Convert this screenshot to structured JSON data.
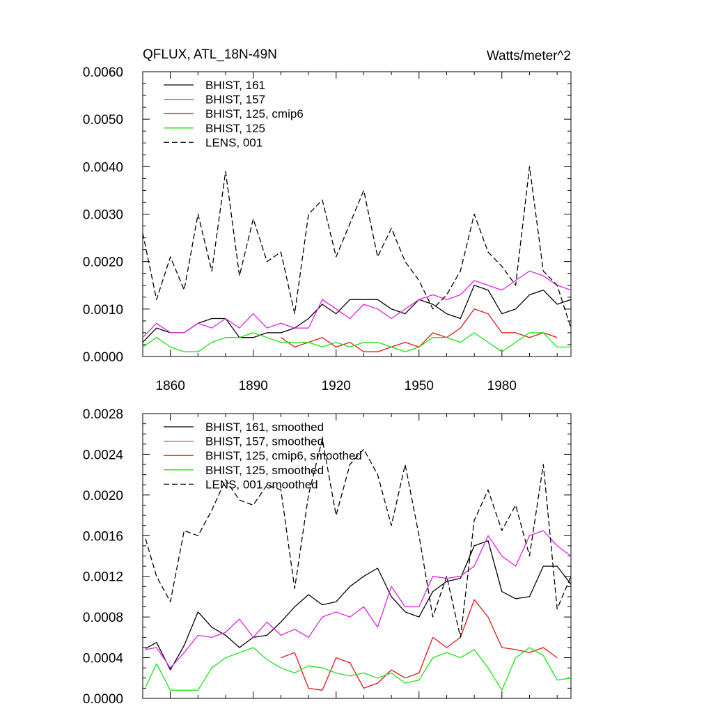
{
  "figure": {
    "title_left": "QFLUX, ATL_18N-49N",
    "title_right": "Watts/meter^2"
  },
  "colors": {
    "BHIST_161": "#000000",
    "BHIST_157": "#e61ee6",
    "BHIST_125_cmip6": "#e61414",
    "BHIST_125": "#14e614",
    "LENS_001": "#000000"
  },
  "chart_data": [
    {
      "type": "line",
      "title": "",
      "xlabel": "",
      "ylabel": "",
      "xlim": [
        1850,
        2005
      ],
      "ylim": [
        0.0,
        0.006
      ],
      "x_ticks": [
        "1860",
        "1890",
        "1920",
        "1950",
        "1980"
      ],
      "y_ticks": [
        "0.0000",
        "0.0010",
        "0.0020",
        "0.0030",
        "0.0040",
        "0.0050",
        "0.0060"
      ],
      "legend_position": "top-left",
      "x": [
        1850,
        1855,
        1860,
        1865,
        1870,
        1875,
        1880,
        1885,
        1890,
        1895,
        1900,
        1905,
        1910,
        1915,
        1920,
        1925,
        1930,
        1935,
        1940,
        1945,
        1950,
        1955,
        1960,
        1965,
        1970,
        1975,
        1980,
        1985,
        1990,
        1995,
        2000,
        2005
      ],
      "series": [
        {
          "name": "BHIST, 161",
          "key": "BHIST_161",
          "dash": "solid",
          "values": [
            0.0003,
            0.0006,
            0.0005,
            0.0005,
            0.0007,
            0.0008,
            0.0008,
            0.0004,
            0.0004,
            0.0005,
            0.0005,
            0.0006,
            0.0008,
            0.0011,
            0.0009,
            0.0012,
            0.0012,
            0.0012,
            0.001,
            0.0009,
            0.0012,
            0.0011,
            0.0009,
            0.0008,
            0.0015,
            0.0014,
            0.0009,
            0.001,
            0.0013,
            0.0014,
            0.0011,
            0.0012
          ]
        },
        {
          "name": "BHIST, 157",
          "key": "BHIST_157",
          "dash": "solid",
          "values": [
            0.0004,
            0.0007,
            0.0005,
            0.0005,
            0.0007,
            0.0006,
            0.0008,
            0.0006,
            0.0009,
            0.0006,
            0.0007,
            0.0006,
            0.0006,
            0.0012,
            0.001,
            0.0008,
            0.0011,
            0.001,
            0.0008,
            0.001,
            0.0012,
            0.0013,
            0.0012,
            0.0013,
            0.0016,
            0.0015,
            0.0014,
            0.0016,
            0.0018,
            0.0017,
            0.0015,
            0.0014
          ]
        },
        {
          "name": "BHIST, 125, cmip6",
          "key": "BHIST_125_cmip6",
          "dash": "solid",
          "values": [
            null,
            null,
            null,
            null,
            null,
            null,
            null,
            null,
            null,
            null,
            0.0004,
            0.0002,
            0.0003,
            0.0004,
            0.0002,
            0.0003,
            0.0001,
            0.0001,
            0.0002,
            0.0003,
            0.0002,
            0.0005,
            0.0004,
            0.0006,
            0.001,
            0.0009,
            0.0005,
            0.0005,
            0.0004,
            0.0005,
            0.0004,
            null
          ]
        },
        {
          "name": "BHIST, 125",
          "key": "BHIST_125",
          "dash": "solid",
          "values": [
            0.0002,
            0.0004,
            0.0002,
            0.0001,
            0.0001,
            0.0003,
            0.0004,
            0.0004,
            0.0005,
            0.0004,
            0.0003,
            0.0003,
            0.0003,
            0.0002,
            0.0003,
            0.0002,
            0.0003,
            0.0003,
            0.0002,
            0.0001,
            0.0002,
            0.0004,
            0.0004,
            0.0003,
            0.0005,
            0.0003,
            0.0001,
            0.0003,
            0.0005,
            0.0005,
            0.0002,
            0.0002
          ]
        },
        {
          "name": "LENS, 001",
          "key": "LENS_001",
          "dash": "dashed",
          "values": [
            0.0026,
            0.0012,
            0.0021,
            0.0014,
            0.003,
            0.0018,
            0.0039,
            0.0017,
            0.0029,
            0.002,
            0.0022,
            0.0009,
            0.003,
            0.0033,
            0.0021,
            0.0028,
            0.0035,
            0.0021,
            0.0027,
            0.002,
            0.0016,
            0.001,
            0.0013,
            0.0018,
            0.003,
            0.0022,
            0.0019,
            0.0015,
            0.004,
            0.0018,
            0.0015,
            0.0006
          ]
        }
      ]
    },
    {
      "type": "line",
      "title": "",
      "xlabel": "",
      "ylabel": "",
      "xlim": [
        1850,
        2005
      ],
      "ylim": [
        0.0,
        0.0028
      ],
      "x_ticks": [],
      "y_ticks": [
        "0.0000",
        "0.0004",
        "0.0008",
        "0.0012",
        "0.0016",
        "0.0020",
        "0.0024",
        "0.0028"
      ],
      "legend_position": "top-left",
      "x": [
        1851,
        1855,
        1860,
        1865,
        1870,
        1875,
        1880,
        1885,
        1890,
        1895,
        1900,
        1905,
        1910,
        1915,
        1920,
        1925,
        1930,
        1935,
        1940,
        1945,
        1950,
        1955,
        1960,
        1965,
        1970,
        1975,
        1980,
        1985,
        1990,
        1995,
        2000,
        2005
      ],
      "series": [
        {
          "name": "BHIST, 161, smoothed",
          "key": "BHIST_161",
          "dash": "solid",
          "values": [
            0.00049,
            0.00055,
            0.00028,
            0.00052,
            0.00085,
            0.0007,
            0.00062,
            0.0005,
            0.0006,
            0.00062,
            0.00075,
            0.0009,
            0.00102,
            0.00092,
            0.00095,
            0.0011,
            0.0012,
            0.00128,
            0.001,
            0.00085,
            0.0008,
            0.00105,
            0.00115,
            0.00118,
            0.0015,
            0.00155,
            0.00105,
            0.00098,
            0.001,
            0.0013,
            0.0013,
            0.00112
          ]
        },
        {
          "name": "BHIST, 157, smoothed",
          "key": "BHIST_157",
          "dash": "solid",
          "values": [
            0.00048,
            0.0005,
            0.0003,
            0.00045,
            0.00062,
            0.0006,
            0.00065,
            0.00078,
            0.0006,
            0.00075,
            0.00062,
            0.00068,
            0.0006,
            0.0008,
            0.00085,
            0.0008,
            0.0009,
            0.0007,
            0.0011,
            0.0009,
            0.0009,
            0.0012,
            0.00118,
            0.0012,
            0.0013,
            0.0016,
            0.0014,
            0.0013,
            0.0016,
            0.00165,
            0.0015,
            0.0014
          ]
        },
        {
          "name": "BHIST, 125, cmip6, smoothed",
          "key": "BHIST_125_cmip6",
          "dash": "solid",
          "values": [
            null,
            null,
            null,
            null,
            null,
            null,
            null,
            null,
            null,
            null,
            0.0004,
            0.00045,
            0.0001,
            8e-05,
            0.0004,
            0.00035,
            0.0001,
            0.00015,
            0.00028,
            0.0002,
            0.00025,
            0.0006,
            0.0005,
            0.0006,
            0.00097,
            0.0008,
            0.0005,
            0.00048,
            0.00045,
            0.0005,
            0.0004,
            null
          ]
        },
        {
          "name": "BHIST, 125, smoothed",
          "key": "BHIST_125",
          "dash": "solid",
          "values": [
            0.00011,
            0.00034,
            8e-05,
            8e-05,
            8e-05,
            0.0003,
            0.0004,
            0.00045,
            0.0005,
            0.00038,
            0.0003,
            0.00025,
            0.00032,
            0.0003,
            0.00025,
            0.00022,
            0.00025,
            0.0002,
            0.00025,
            0.00015,
            0.00018,
            0.0004,
            0.00045,
            0.0004,
            0.00048,
            0.0003,
            8e-05,
            0.0004,
            0.0005,
            0.00042,
            0.00018,
            0.0002
          ]
        },
        {
          "name": "LENS, 001 smoothed",
          "key": "LENS_001",
          "dash": "dashed",
          "values": [
            0.00157,
            0.0012,
            0.00095,
            0.00165,
            0.0016,
            0.00185,
            0.00215,
            0.00195,
            0.0019,
            0.0021,
            0.00205,
            0.00108,
            0.002,
            0.00255,
            0.0018,
            0.0023,
            0.00245,
            0.0022,
            0.0017,
            0.0023,
            0.0016,
            0.0008,
            0.0012,
            0.0006,
            0.00175,
            0.00205,
            0.00165,
            0.0019,
            0.0014,
            0.0023,
            0.00088,
            0.0012
          ]
        }
      ]
    }
  ]
}
